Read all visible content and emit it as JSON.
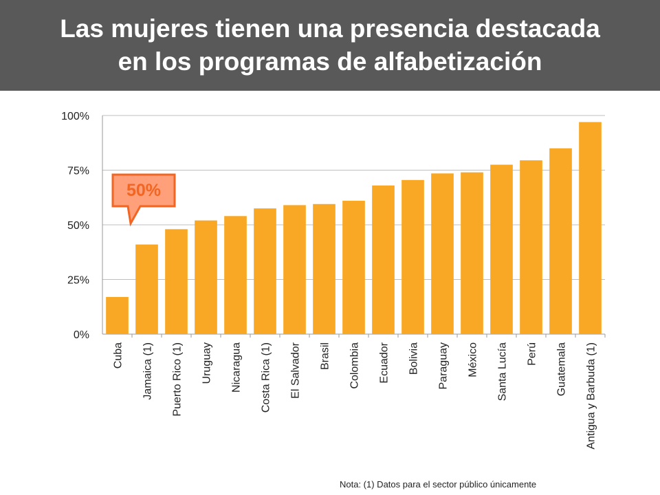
{
  "header": {
    "title_line1": "Las mujeres tienen una presencia destacada",
    "title_line2": "en los programas de alfabetización"
  },
  "chart_data": {
    "type": "bar",
    "title": "Las mujeres tienen una presencia destacada en los programas de alfabetización",
    "xlabel": "",
    "ylabel": "",
    "ylim": [
      0,
      100
    ],
    "y_ticks": [
      0,
      25,
      50,
      75,
      100
    ],
    "y_tick_labels": [
      "0%",
      "25%",
      "50%",
      "75%",
      "100%"
    ],
    "grid": true,
    "bar_color": "#F9A825",
    "categories": [
      "Cuba",
      "Jamaica (1)",
      "Puerto Rico (1)",
      "Uruguay",
      "Nicaragua",
      "Costa Rica (1)",
      "El Salvador",
      "Brasil",
      "Colombia",
      "Ecuador",
      "Bolivia",
      "Paraguay",
      "México",
      "Santa Lucía",
      "Perú",
      "Guatemala",
      "Antigua y Barbuda (1)"
    ],
    "values": [
      17,
      41,
      48,
      52,
      54,
      57.5,
      59,
      59.5,
      61,
      68,
      70.5,
      73.5,
      74,
      77.5,
      79.5,
      85,
      97
    ],
    "annotation": {
      "text": "50%",
      "value": 50,
      "fill_color": "#FFA07A",
      "border_color": "#F26522",
      "text_color": "#F26522"
    }
  },
  "footnote": "Nota: (1) Datos para el sector público únicamente"
}
